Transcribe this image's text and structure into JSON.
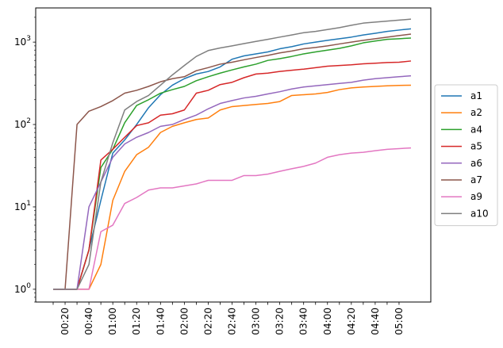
{
  "chart_data": {
    "type": "line",
    "title": "",
    "xlabel": "",
    "ylabel": "",
    "yscale": "log",
    "ylim": [
      0.7,
      2600
    ],
    "y_ticks": [
      {
        "base": "10",
        "exp": "0"
      },
      {
        "base": "10",
        "exp": "1"
      },
      {
        "base": "10",
        "exp": "2"
      },
      {
        "base": "10",
        "exp": "3"
      }
    ],
    "x_tick_labels": [
      "",
      "00:20",
      "",
      "00:40",
      "",
      "01:00",
      "",
      "01:20",
      "",
      "01:40",
      "",
      "02:00",
      "",
      "02:20",
      "",
      "02:40",
      "",
      "03:00",
      "",
      "03:20",
      "",
      "03:40",
      "",
      "04:00",
      "",
      "04:20",
      "",
      "04:40",
      "",
      "05:00"
    ],
    "legend_position": "center-right",
    "series": [
      {
        "name": "a1",
        "color": "#1f77b4",
        "values": [
          1,
          1,
          1,
          3,
          12,
          45,
          65,
          100,
          160,
          230,
          300,
          360,
          410,
          440,
          500,
          620,
          680,
          720,
          760,
          830,
          880,
          950,
          1000,
          1050,
          1100,
          1150,
          1220,
          1280,
          1350,
          1400,
          1450
        ]
      },
      {
        "name": "a2",
        "color": "#ff7f0e",
        "values": [
          1,
          1,
          1,
          1,
          2,
          12,
          27,
          43,
          53,
          80,
          95,
          105,
          115,
          120,
          150,
          165,
          170,
          175,
          180,
          190,
          225,
          230,
          235,
          245,
          265,
          278,
          285,
          290,
          295,
          298,
          300
        ]
      },
      {
        "name": "a4",
        "color": "#2ca02c",
        "values": [
          1,
          1,
          1,
          3,
          30,
          50,
          105,
          170,
          200,
          240,
          265,
          290,
          340,
          380,
          420,
          460,
          500,
          540,
          600,
          630,
          670,
          720,
          760,
          800,
          840,
          900,
          980,
          1030,
          1080,
          1100,
          1120
        ]
      },
      {
        "name": "a5",
        "color": "#d62728",
        "values": [
          1,
          1,
          1,
          3,
          37,
          50,
          70,
          97,
          105,
          130,
          135,
          150,
          240,
          260,
          305,
          325,
          370,
          410,
          420,
          440,
          455,
          470,
          490,
          510,
          520,
          530,
          545,
          555,
          565,
          570,
          590
        ]
      },
      {
        "name": "a6",
        "color": "#9467bd",
        "values": [
          1,
          1,
          1,
          10,
          20,
          40,
          58,
          70,
          80,
          95,
          100,
          115,
          130,
          155,
          180,
          195,
          210,
          220,
          235,
          250,
          270,
          285,
          295,
          305,
          315,
          325,
          345,
          360,
          370,
          380,
          390
        ]
      },
      {
        "name": "a7",
        "color": "#8c564b",
        "values": [
          1,
          1,
          100,
          145,
          165,
          195,
          240,
          260,
          290,
          330,
          360,
          380,
          450,
          490,
          540,
          570,
          610,
          650,
          690,
          740,
          780,
          830,
          860,
          900,
          950,
          1000,
          1050,
          1100,
          1150,
          1200,
          1250
        ]
      },
      {
        "name": "a9",
        "color": "#e377c2",
        "values": [
          1,
          1,
          1,
          1,
          5,
          6,
          11,
          13,
          16,
          17,
          17,
          18,
          19,
          21,
          21,
          21,
          24,
          24,
          25,
          27,
          29,
          31,
          34,
          40,
          43,
          45,
          46,
          48,
          50,
          51,
          52
        ]
      },
      {
        "name": "a10",
        "color": "#7f7f7f",
        "values": [
          1,
          1,
          1,
          2,
          20,
          60,
          150,
          190,
          225,
          300,
          400,
          520,
          670,
          790,
          850,
          900,
          960,
          1020,
          1080,
          1150,
          1220,
          1300,
          1350,
          1420,
          1500,
          1600,
          1700,
          1750,
          1800,
          1850,
          1900
        ]
      }
    ]
  }
}
